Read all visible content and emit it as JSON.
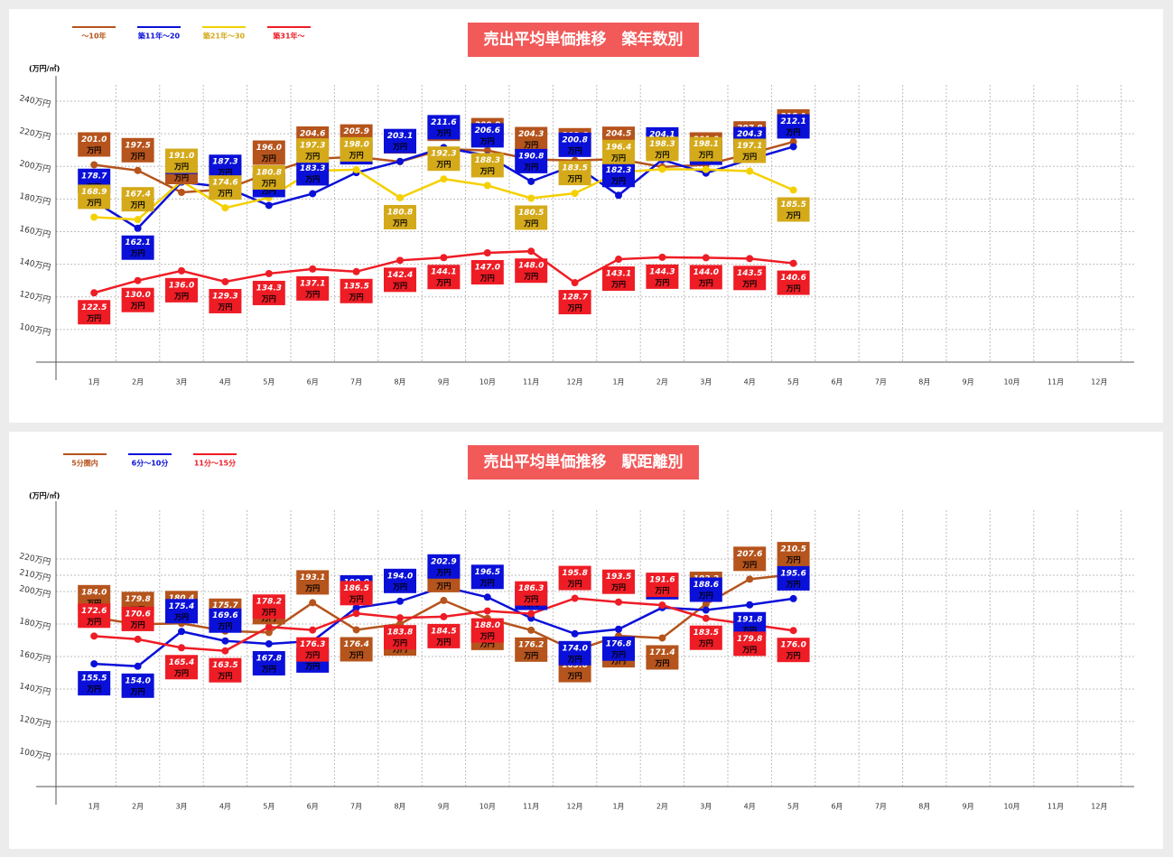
{
  "chart_data": [
    {
      "type": "line",
      "title": "売出平均単価推移　築年数別",
      "unit_label": "(万円/㎡)",
      "value_unit": "万円",
      "grid": true,
      "categories": [
        "1月",
        "2月",
        "3月",
        "4月",
        "5月",
        "6月",
        "7月",
        "8月",
        "9月",
        "10月",
        "11月",
        "12月",
        "1月",
        "2月",
        "3月",
        "4月",
        "5月",
        "6月",
        "7月",
        "8月",
        "9月",
        "10月",
        "11月",
        "12月"
      ],
      "ylim": [
        80,
        250
      ],
      "yticks": [
        {
          "value": 100,
          "label": "100万円"
        },
        {
          "value": 120,
          "label": "120万円"
        },
        {
          "value": 140,
          "label": "140万円"
        },
        {
          "value": 160,
          "label": "160万円"
        },
        {
          "value": 180,
          "label": "180万円"
        },
        {
          "value": 200,
          "label": "200万円"
        },
        {
          "value": 220,
          "label": "220万円"
        },
        {
          "value": 240,
          "label": "240万円"
        }
      ],
      "series": [
        {
          "name": "～10年",
          "color": "#b5541c",
          "label_color": "#b5541c",
          "values": [
            201.0,
            197.5,
            184.1,
            185.9,
            196.0,
            204.6,
            205.9,
            202.9,
            210.6,
            209.8,
            204.3,
            203.6,
            204.5,
            199.7,
            201.0,
            207.8,
            215.1,
            null,
            null,
            null,
            null,
            null,
            null,
            null
          ],
          "value_labels": [
            "201.0",
            "197.5",
            "184.1",
            "185.9",
            "196.0",
            "204.6",
            "205.9",
            "202.9",
            "210.6",
            "209.8",
            "204.3",
            "203.6",
            "204.5",
            "199.7",
            "201.0",
            "207.8",
            "215.1",
            null,
            null,
            null,
            null,
            null,
            null,
            null
          ]
        },
        {
          "name": "築11年～20",
          "color": "#0a10d8",
          "label_color": "#0a10d8",
          "values": [
            178.7,
            162.1,
            190.4,
            187.3,
            176.1,
            183.3,
            196.2,
            203.1,
            211.6,
            206.6,
            190.8,
            200.8,
            182.3,
            204.1,
            195.9,
            204.3,
            212.1,
            null,
            null,
            null,
            null,
            null,
            null,
            null
          ],
          "value_labels": [
            "178.7",
            "162.1",
            "190.4",
            "187.3",
            "176.1",
            "183.3",
            "196.2",
            "203.1",
            "211.6",
            "206.6",
            "190.8",
            "200.8",
            "182.3",
            "204.1",
            "195.9",
            "204.3",
            "212.1",
            null,
            null,
            null,
            null,
            null,
            null,
            null
          ]
        },
        {
          "name": "築21年～30",
          "color": "#f5d000",
          "label_color": "#d4aa1a",
          "values": [
            168.9,
            167.4,
            191.0,
            174.6,
            180.8,
            197.3,
            198.0,
            180.8,
            192.3,
            188.3,
            180.5,
            183.5,
            196.4,
            198.3,
            198.1,
            197.1,
            185.5,
            null,
            null,
            null,
            null,
            null,
            null,
            null
          ],
          "value_labels": [
            "168.9",
            "167.4",
            "191.0",
            "174.6",
            "180.8",
            "197.3",
            "198.0",
            "180.8",
            "192.3",
            "188.3",
            "180.5",
            "183.5",
            "196.4",
            "198.3",
            "198.1",
            "197.1",
            "185.5",
            null,
            null,
            null,
            null,
            null,
            null,
            null
          ]
        },
        {
          "name": "築31年～",
          "color": "#ee1c25",
          "label_color": "#ee1c25",
          "values": [
            122.5,
            130.0,
            136.0,
            129.3,
            134.3,
            137.1,
            135.5,
            142.4,
            144.1,
            147.0,
            148.0,
            128.7,
            143.1,
            144.3,
            144.0,
            143.5,
            140.6,
            null,
            null,
            null,
            null,
            null,
            null,
            null
          ],
          "value_labels": [
            "122.5",
            "130.0",
            "136.0",
            "129.3",
            "134.3",
            "137.1",
            "135.5",
            "142.4",
            "144.1",
            "147.0",
            "148.0",
            "128.7",
            "143.1",
            "144.3",
            "144.0",
            "143.5",
            "140.6",
            null,
            null,
            null,
            null,
            null,
            null,
            null
          ]
        }
      ]
    },
    {
      "type": "line",
      "title": "売出平均単価推移　駅距離別",
      "unit_label": "(万円/㎡)",
      "value_unit": "万円",
      "grid": true,
      "categories": [
        "1月",
        "2月",
        "3月",
        "4月",
        "5月",
        "6月",
        "7月",
        "8月",
        "9月",
        "10月",
        "11月",
        "12月",
        "1月",
        "2月",
        "3月",
        "4月",
        "5月",
        "6月",
        "7月",
        "8月",
        "9月",
        "10月",
        "11月",
        "12月"
      ],
      "ylim": [
        80,
        250
      ],
      "yticks": [
        {
          "value": 100,
          "label": "100万円"
        },
        {
          "value": 120,
          "label": "120万円"
        },
        {
          "value": 140,
          "label": "140万円"
        },
        {
          "value": 160,
          "label": "160万円"
        },
        {
          "value": 180,
          "label": "180万円"
        },
        {
          "value": 200,
          "label": "200万円"
        },
        {
          "value": 210,
          "label": "210万円"
        },
        {
          "value": 220,
          "label": "220万円"
        }
      ],
      "series": [
        {
          "name": "5分圏内",
          "color": "#b5541c",
          "label_color": "#b5541c",
          "values": [
            184.0,
            179.8,
            180.4,
            175.7,
            174.8,
            193.1,
            176.4,
            180.0,
            194.5,
            183.4,
            176.2,
            163.6,
            172.7,
            171.4,
            192.2,
            207.6,
            210.5,
            null,
            null,
            null,
            null,
            null,
            null,
            null
          ],
          "value_labels": [
            "184.0",
            "179.8",
            "180.4",
            "175.7",
            "174.8",
            "193.1",
            "176.4",
            "180.0",
            "194.5",
            "183.4",
            "176.2",
            "163.6",
            "172.7",
            "171.4",
            "192.2",
            "207.6",
            "210.5",
            null,
            null,
            null,
            null,
            null,
            null,
            null
          ]
        },
        {
          "name": "6分～10分",
          "color": "#0a10d8",
          "label_color": "#0a10d8",
          "values": [
            155.5,
            154.0,
            175.4,
            169.6,
            167.8,
            169.5,
            190.0,
            194.0,
            202.9,
            196.5,
            183.6,
            174.0,
            176.8,
            190.1,
            188.6,
            191.8,
            195.6,
            null,
            null,
            null,
            null,
            null,
            null,
            null
          ],
          "value_labels": [
            "155.5",
            "154.0",
            "175.4",
            "169.6",
            "167.8",
            "169.5",
            "190.0",
            "194.0",
            "202.9",
            "196.5",
            "183.6",
            "174.0",
            "176.8",
            "190.1",
            "188.6",
            "191.8",
            "195.6",
            null,
            null,
            null,
            null,
            null,
            null,
            null
          ]
        },
        {
          "name": "11分～15分",
          "color": "#ee1c25",
          "label_color": "#ee1c25",
          "values": [
            172.6,
            170.6,
            165.4,
            163.5,
            178.2,
            176.3,
            186.5,
            183.8,
            184.5,
            188.0,
            186.3,
            195.8,
            193.5,
            191.6,
            183.5,
            179.8,
            176.0,
            null,
            null,
            null,
            null,
            null,
            null,
            null
          ],
          "value_labels": [
            "172.6",
            "170.6",
            "165.4",
            "163.5",
            "178.2",
            "176.3",
            "186.5",
            "183.8",
            "184.5",
            "188.0",
            "186.3",
            "195.8",
            "193.5",
            "191.6",
            "183.5",
            "179.8",
            "176.0",
            null,
            null,
            null,
            null,
            null,
            null,
            null
          ]
        }
      ]
    }
  ]
}
